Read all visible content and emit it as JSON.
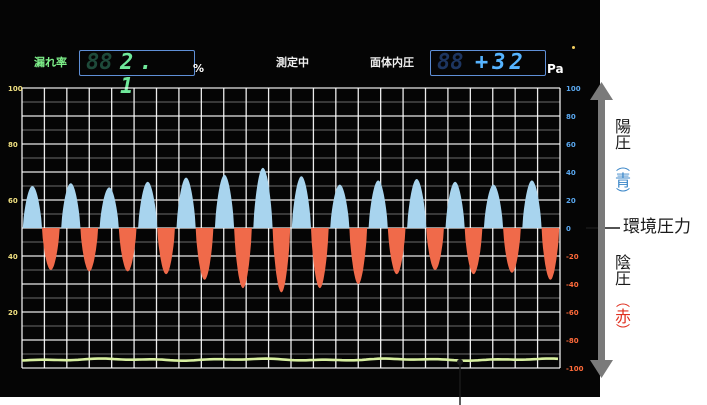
{
  "header": {
    "leak_rate_label": "漏れ率",
    "leak_rate_value": "2. 1",
    "leak_rate_unit": "%",
    "status": "測定中",
    "pressure_label": "面体内圧",
    "pressure_value": "+32",
    "pressure_unit": "Pa"
  },
  "left_axis_ticks": [
    "100",
    "80",
    "60",
    "40",
    "20"
  ],
  "right_axis_ticks": [
    "100",
    "80",
    "60",
    "40",
    "20",
    "0",
    "-20",
    "-40",
    "-60",
    "-80",
    "-100"
  ],
  "annotations": {
    "positive_pressure": "陽圧",
    "positive_color": "青",
    "ambient_pressure": "環境圧力",
    "negative_pressure": "陰圧",
    "negative_color": "赤"
  },
  "colors": {
    "positive_fill": "#a8d4ee",
    "negative_fill": "#f06a4a",
    "leak_line": "#d8f0a0",
    "grid": "#ffffff",
    "axis_ticks_positive": "#5aa8f0",
    "axis_ticks_negative": "#ff6a3a",
    "arrow": "#7a7a7a"
  },
  "chart_data": {
    "type": "area",
    "ylabel_left": "",
    "ylabel_right": "",
    "ylim_pressure": [
      -100,
      100
    ],
    "ylim_leak": [
      0,
      100
    ],
    "grid": true,
    "series": [
      {
        "name": "陽圧",
        "peaks": [
          30,
          32,
          29,
          33,
          36,
          38,
          43,
          37,
          31,
          34,
          35,
          33,
          31,
          34
        ]
      },
      {
        "name": "陰圧",
        "troughs": [
          -30,
          -31,
          -31,
          -33,
          -37,
          -43,
          -46,
          -43,
          -40,
          -33,
          -30,
          -33,
          -32,
          -37
        ]
      }
    ],
    "leak_rate_level": 3
  }
}
